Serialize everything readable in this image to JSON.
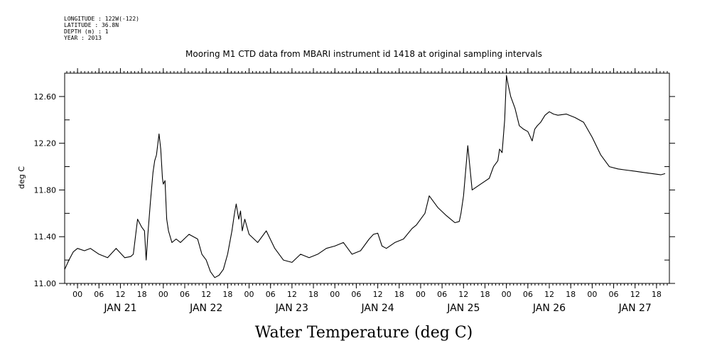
{
  "header": {
    "longitude": "LONGITUDE : 122W(-122)",
    "latitude": "LATITUDE : 36.8N",
    "depth": "DEPTH (m) : 1",
    "year": "YEAR : 2013"
  },
  "chart_data": {
    "type": "line",
    "title": "Mooring M1 CTD data from MBARI instrument id 1418 at original sampling intervals",
    "ylabel": "deg C",
    "xlabel": "Water Temperature (deg C)",
    "ylim": [
      11.0,
      12.8
    ],
    "yticks": [
      "11.00",
      "11.40",
      "11.80",
      "12.20",
      "12.60"
    ],
    "ytick_values": [
      11.0,
      11.4,
      11.8,
      12.2,
      12.6
    ],
    "xlim": [
      -0.15,
      6.9
    ],
    "hour_ticks": [
      {
        "x": 0.0,
        "label": "00"
      },
      {
        "x": 0.25,
        "label": "06"
      },
      {
        "x": 0.5,
        "label": "12"
      },
      {
        "x": 0.75,
        "label": "18"
      },
      {
        "x": 1.0,
        "label": "00"
      },
      {
        "x": 1.25,
        "label": "06"
      },
      {
        "x": 1.5,
        "label": "12"
      },
      {
        "x": 1.75,
        "label": "18"
      },
      {
        "x": 2.0,
        "label": "00"
      },
      {
        "x": 2.25,
        "label": "06"
      },
      {
        "x": 2.5,
        "label": "12"
      },
      {
        "x": 2.75,
        "label": "18"
      },
      {
        "x": 3.0,
        "label": "00"
      },
      {
        "x": 3.25,
        "label": "06"
      },
      {
        "x": 3.5,
        "label": "12"
      },
      {
        "x": 3.75,
        "label": "18"
      },
      {
        "x": 4.0,
        "label": "00"
      },
      {
        "x": 4.25,
        "label": "06"
      },
      {
        "x": 4.5,
        "label": "12"
      },
      {
        "x": 4.75,
        "label": "18"
      },
      {
        "x": 5.0,
        "label": "00"
      },
      {
        "x": 5.25,
        "label": "06"
      },
      {
        "x": 5.5,
        "label": "12"
      },
      {
        "x": 5.75,
        "label": "18"
      },
      {
        "x": 6.0,
        "label": "00"
      },
      {
        "x": 6.25,
        "label": "06"
      },
      {
        "x": 6.5,
        "label": "12"
      },
      {
        "x": 6.75,
        "label": "18"
      }
    ],
    "day_labels": [
      {
        "x": 0.5,
        "label": "JAN 21"
      },
      {
        "x": 1.5,
        "label": "JAN 22"
      },
      {
        "x": 2.5,
        "label": "JAN 23"
      },
      {
        "x": 3.5,
        "label": "JAN 24"
      },
      {
        "x": 4.5,
        "label": "JAN 25"
      },
      {
        "x": 5.5,
        "label": "JAN 26"
      },
      {
        "x": 6.5,
        "label": "JAN 27"
      }
    ],
    "x_unit": "days since Jan 21 00:00 (2013)",
    "series": [
      {
        "name": "Water Temperature",
        "x": [
          -0.15,
          -0.1,
          -0.05,
          0.0,
          0.08,
          0.15,
          0.25,
          0.35,
          0.45,
          0.55,
          0.62,
          0.65,
          0.7,
          0.75,
          0.78,
          0.8,
          0.82,
          0.85,
          0.88,
          0.9,
          0.92,
          0.95,
          0.97,
          0.99,
          1.0,
          1.02,
          1.04,
          1.06,
          1.1,
          1.15,
          1.2,
          1.3,
          1.4,
          1.45,
          1.5,
          1.55,
          1.6,
          1.65,
          1.7,
          1.75,
          1.8,
          1.83,
          1.85,
          1.88,
          1.9,
          1.92,
          1.95,
          2.0,
          2.1,
          2.2,
          2.3,
          2.35,
          2.4,
          2.5,
          2.6,
          2.7,
          2.8,
          2.9,
          3.0,
          3.1,
          3.2,
          3.3,
          3.4,
          3.45,
          3.5,
          3.55,
          3.6,
          3.7,
          3.8,
          3.9,
          3.95,
          4.0,
          4.05,
          4.1,
          4.2,
          4.3,
          4.35,
          4.4,
          4.45,
          4.47,
          4.5,
          4.55,
          4.6,
          4.7,
          4.8,
          4.85,
          4.9,
          4.92,
          4.95,
          4.98,
          5.0,
          5.02,
          5.05,
          5.1,
          5.15,
          5.2,
          5.25,
          5.3,
          5.33,
          5.36,
          5.4,
          5.45,
          5.5,
          5.55,
          5.6,
          5.7,
          5.8,
          5.9,
          6.0,
          6.1,
          6.2,
          6.3,
          6.4,
          6.5,
          6.6,
          6.7,
          6.8,
          6.85
        ],
        "y": [
          11.12,
          11.2,
          11.27,
          11.3,
          11.28,
          11.3,
          11.25,
          11.22,
          11.3,
          11.22,
          11.23,
          11.25,
          11.55,
          11.48,
          11.45,
          11.2,
          11.42,
          11.7,
          11.95,
          12.05,
          12.1,
          12.28,
          12.15,
          11.9,
          11.85,
          11.88,
          11.55,
          11.45,
          11.35,
          11.38,
          11.35,
          11.42,
          11.38,
          11.25,
          11.2,
          11.1,
          11.05,
          11.07,
          11.12,
          11.25,
          11.45,
          11.6,
          11.68,
          11.55,
          11.62,
          11.45,
          11.55,
          11.42,
          11.35,
          11.45,
          11.3,
          11.25,
          11.2,
          11.18,
          11.25,
          11.22,
          11.25,
          11.3,
          11.32,
          11.35,
          11.25,
          11.28,
          11.38,
          11.42,
          11.43,
          11.32,
          11.3,
          11.35,
          11.38,
          11.47,
          11.5,
          11.55,
          11.6,
          11.75,
          11.65,
          11.58,
          11.55,
          11.52,
          11.53,
          11.6,
          11.75,
          12.18,
          11.8,
          11.85,
          11.9,
          12.0,
          12.05,
          12.15,
          12.12,
          12.4,
          12.78,
          12.7,
          12.6,
          12.5,
          12.35,
          12.32,
          12.3,
          12.22,
          12.32,
          12.35,
          12.38,
          12.44,
          12.47,
          12.45,
          12.44,
          12.45,
          12.42,
          12.38,
          12.25,
          12.1,
          12.0,
          11.98,
          11.97,
          11.96,
          11.95,
          11.94,
          11.93,
          11.94
        ]
      }
    ]
  }
}
